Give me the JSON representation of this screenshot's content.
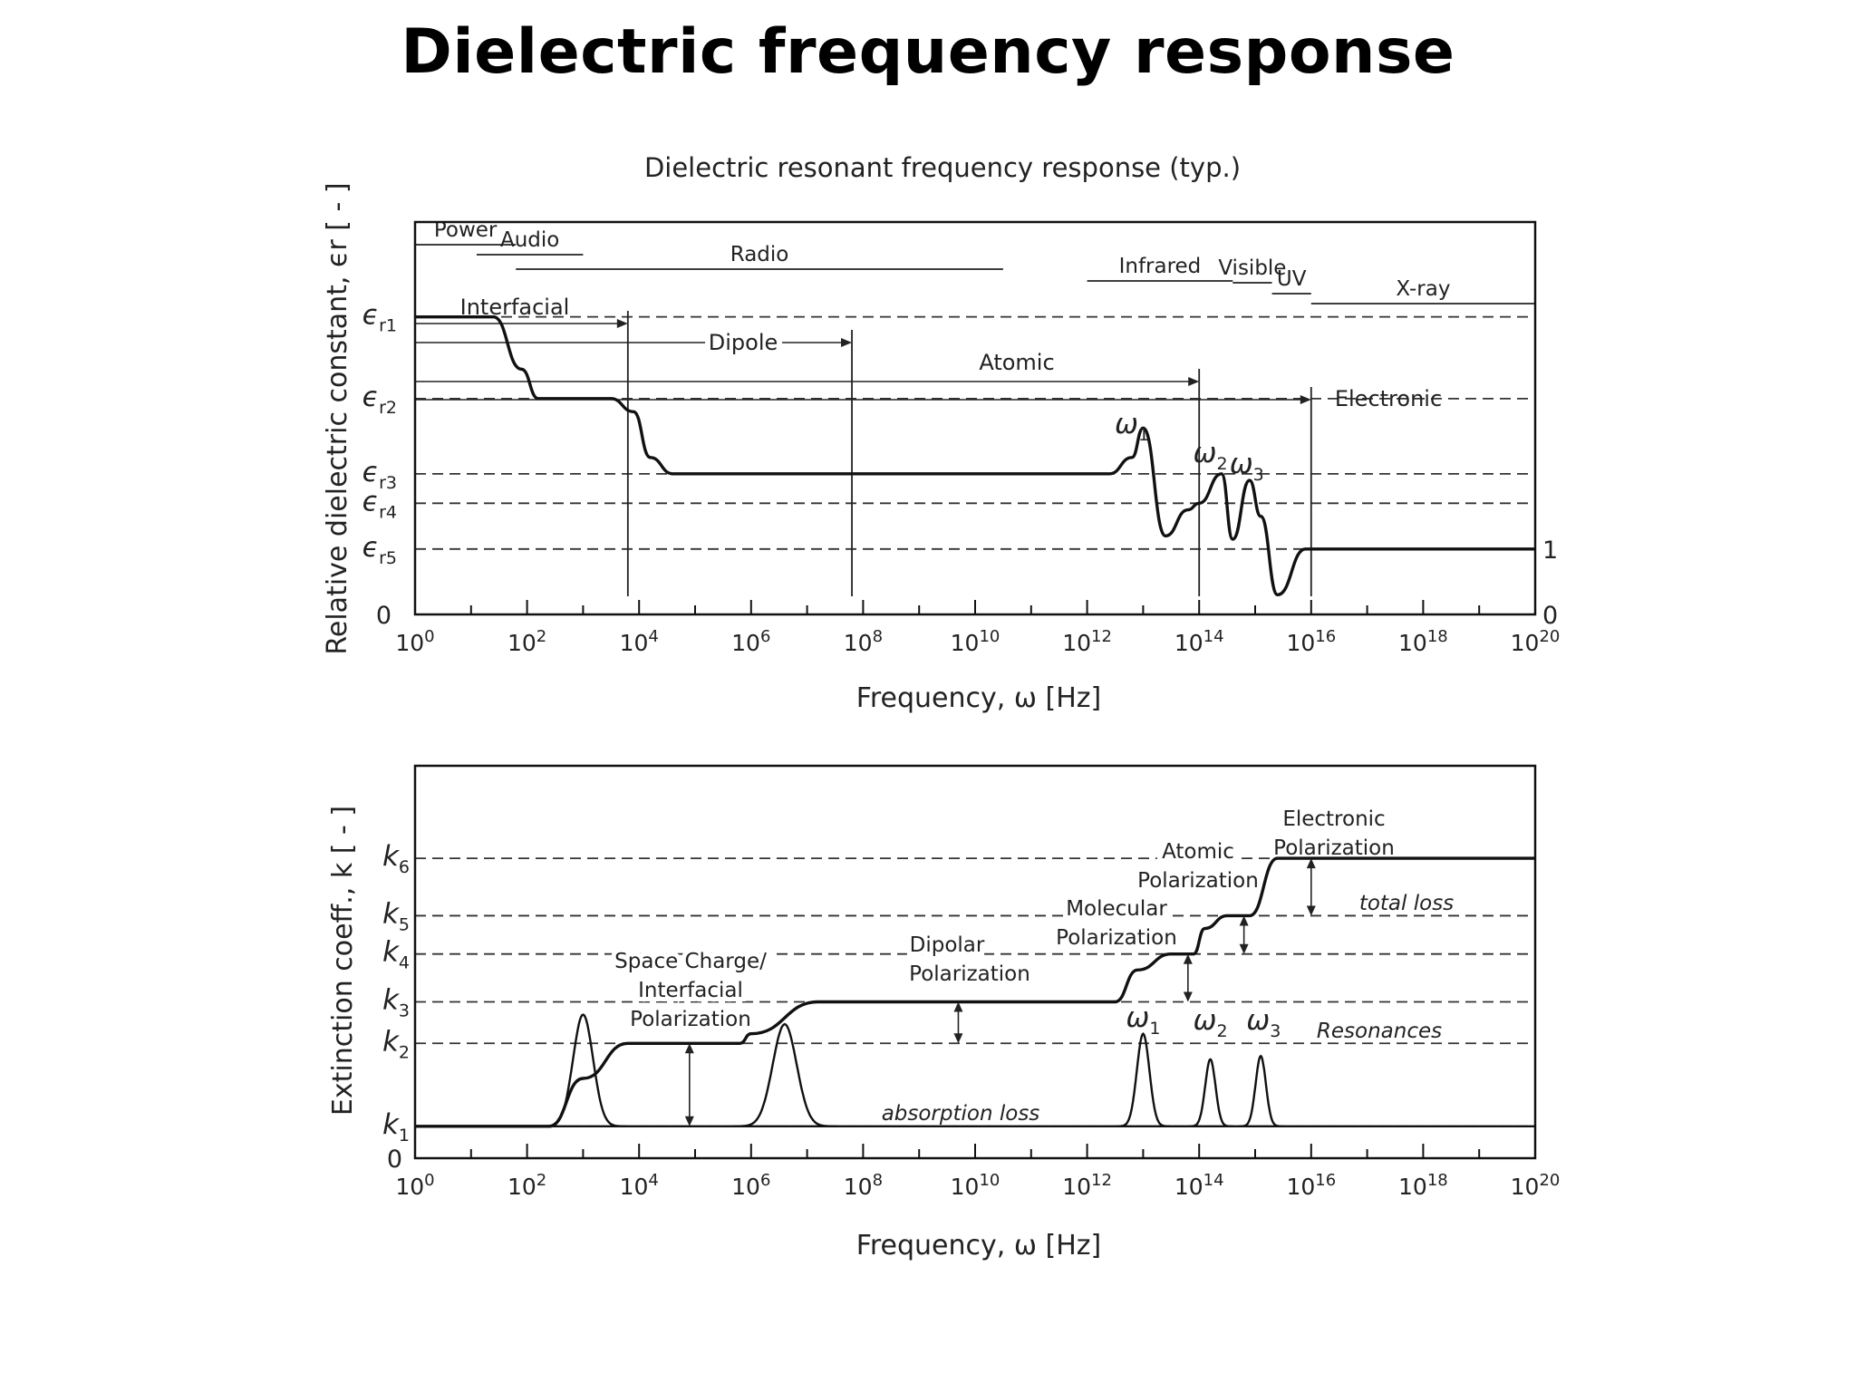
{
  "page": {
    "title": "Dielectric frequency response"
  },
  "chart_data": [
    {
      "type": "line",
      "title": "Dielectric resonant frequency response (typ.)",
      "xlabel": "Frequency, ω  [Hz]",
      "ylabel": "Relative dielectric constant, ϵr  [ - ]",
      "x_scale": "log",
      "xlim_exponent": [
        0,
        20
      ],
      "x_tick_labels": [
        "10^0",
        "10^2",
        "10^4",
        "10^6",
        "10^8",
        "10^10",
        "10^12",
        "10^14",
        "10^16",
        "10^18",
        "10^20"
      ],
      "y_levels": [
        {
          "label": "ϵr1",
          "value": 9.1
        },
        {
          "label": "ϵr2",
          "value": 6.6
        },
        {
          "label": "ϵr3",
          "value": 4.3
        },
        {
          "label": "ϵr4",
          "value": 3.4
        },
        {
          "label": "ϵr5",
          "value": 2.0
        },
        {
          "label": "0",
          "value": 0
        }
      ],
      "right_labels": [
        {
          "label": "1",
          "value": 2.0
        },
        {
          "label": "0",
          "value": 0
        }
      ],
      "bands": [
        {
          "label": "Power",
          "x0": 0,
          "x1": 1.8
        },
        {
          "label": "Audio",
          "x0": 1.1,
          "x1": 3.0
        },
        {
          "label": "Radio",
          "x0": 1.8,
          "x1": 10.5
        },
        {
          "label": "Infrared",
          "x0": 12.0,
          "x1": 14.6
        },
        {
          "label": "Visible",
          "x0": 14.6,
          "x1": 15.3
        },
        {
          "label": "UV",
          "x0": 15.3,
          "x1": 16.0
        },
        {
          "label": "X-ray",
          "x0": 16.0,
          "x1": 20.0
        }
      ],
      "mechanisms": [
        {
          "label": "Interfacial",
          "x_end": 3.8
        },
        {
          "label": "Dipole",
          "x_end": 7.8
        },
        {
          "label": "Atomic",
          "x_end": 14.0
        },
        {
          "label": "Electronic",
          "x_end": 16.0
        }
      ],
      "resonance_labels": [
        "ω1",
        "ω2",
        "ω3"
      ],
      "series": [
        {
          "x": [
            0,
            1.4,
            1.9,
            2.2,
            3.5,
            3.9,
            4.2,
            4.6,
            12.4,
            12.8,
            13.0,
            13.4,
            13.8,
            14.0,
            14.4,
            14.6,
            14.9,
            15.1,
            15.4,
            15.9,
            16.0,
            20.0
          ],
          "y": [
            9.1,
            9.1,
            7.5,
            6.6,
            6.6,
            6.2,
            4.8,
            4.3,
            4.3,
            4.8,
            5.7,
            2.4,
            3.2,
            3.4,
            4.3,
            2.3,
            4.1,
            3.0,
            0.6,
            2.0,
            2.0,
            2.0
          ]
        }
      ]
    },
    {
      "type": "line",
      "title": "",
      "xlabel": "Frequency, ω  [Hz]",
      "ylabel": "Extinction coeff., k  [ - ]",
      "x_scale": "log",
      "xlim_exponent": [
        0,
        20
      ],
      "x_tick_labels": [
        "10^0",
        "10^2",
        "10^4",
        "10^6",
        "10^8",
        "10^10",
        "10^12",
        "10^14",
        "10^16",
        "10^18",
        "10^20"
      ],
      "y_levels": [
        {
          "label": "k6",
          "value": 8.4
        },
        {
          "label": "k5",
          "value": 6.6
        },
        {
          "label": "k4",
          "value": 5.4
        },
        {
          "label": "k3",
          "value": 3.9
        },
        {
          "label": "k2",
          "value": 2.6
        },
        {
          "label": "k1",
          "value": 0.0
        },
        {
          "label": "0",
          "value": -1.0
        }
      ],
      "annotations": [
        {
          "text": "Space Charge/",
          "role": "label"
        },
        {
          "text": "Interfacial",
          "role": "label"
        },
        {
          "text": "Polarization",
          "role": "label"
        },
        {
          "text": "Dipolar",
          "role": "label"
        },
        {
          "text": "Polarization",
          "role": "label"
        },
        {
          "text": "Molecular",
          "role": "label"
        },
        {
          "text": "Polarization",
          "role": "label"
        },
        {
          "text": "Atomic",
          "role": "label"
        },
        {
          "text": "Polarization",
          "role": "label"
        },
        {
          "text": "Electronic",
          "role": "label"
        },
        {
          "text": "Polarization",
          "role": "label"
        },
        {
          "text": "total loss",
          "role": "italic"
        },
        {
          "text": "Resonances",
          "role": "italic"
        },
        {
          "text": "absorption loss",
          "role": "italic"
        }
      ],
      "resonance_labels": [
        "ω1",
        "ω2",
        "ω3"
      ],
      "series": [
        {
          "name": "",
          "x": [
            0,
            2.4,
            3.0,
            3.8,
            5.8,
            6.0,
            7.2,
            12.5,
            12.9,
            13.5,
            13.9,
            14.1,
            14.5,
            14.9,
            15.4,
            20.0
          ],
          "y": [
            0,
            0,
            1.5,
            2.6,
            2.6,
            2.9,
            3.9,
            3.9,
            4.9,
            5.4,
            5.4,
            6.2,
            6.6,
            6.6,
            8.4,
            8.4
          ]
        },
        {
          "name": "",
          "peaks": [
            {
              "x": 3.0,
              "height": 3.5
            },
            {
              "x": 6.6,
              "height": 3.2
            },
            {
              "x": 13.0,
              "height": 2.9
            },
            {
              "x": 14.2,
              "height": 2.1
            },
            {
              "x": 15.1,
              "height": 2.2
            }
          ]
        }
      ]
    }
  ]
}
